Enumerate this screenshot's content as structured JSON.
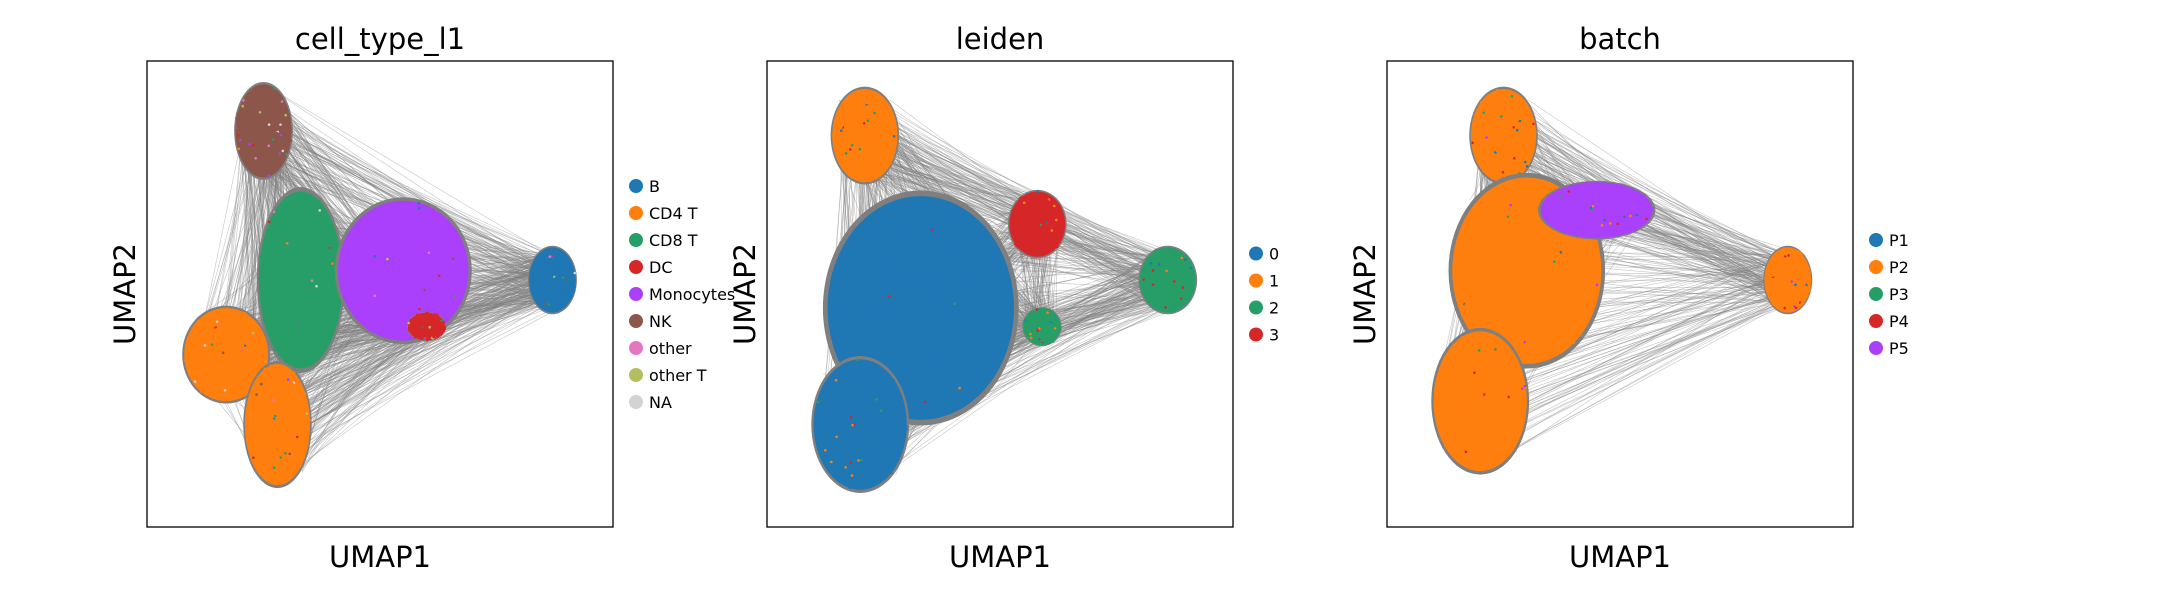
{
  "chart_data": [
    {
      "type": "scatter",
      "title": "cell_type_l1",
      "xlabel": "UMAP1",
      "ylabel": "UMAP2",
      "xticks": "none",
      "yticks": "none",
      "grid": false,
      "edges": "gray PAGA-style connectivity lines between clusters",
      "legend": {
        "placement": "right-outside",
        "entries": [
          {
            "label": "B",
            "color": "#1f77b4"
          },
          {
            "label": "CD4 T",
            "color": "#ff7f0e"
          },
          {
            "label": "CD8 T",
            "color": "#279e68"
          },
          {
            "label": "DC",
            "color": "#d62728"
          },
          {
            "label": "Monocytes",
            "color": "#aa40fc"
          },
          {
            "label": "NK",
            "color": "#8c564b"
          },
          {
            "label": "other",
            "color": "#e377c2"
          },
          {
            "label": "other T",
            "color": "#b5bd61"
          },
          {
            "label": "NA",
            "color": "#d3d3d3"
          }
        ]
      },
      "clusters": [
        {
          "label": "NK",
          "x": 0.25,
          "y": 0.85,
          "rx": 0.06,
          "ry": 0.1
        },
        {
          "label": "CD8 T",
          "x": 0.33,
          "y": 0.53,
          "rx": 0.09,
          "ry": 0.19
        },
        {
          "label": "Monocytes",
          "x": 0.55,
          "y": 0.55,
          "rx": 0.14,
          "ry": 0.15
        },
        {
          "label": "CD4 T",
          "x": 0.17,
          "y": 0.37,
          "rx": 0.09,
          "ry": 0.1
        },
        {
          "label": "CD4 T",
          "x": 0.28,
          "y": 0.22,
          "rx": 0.07,
          "ry": 0.13
        },
        {
          "label": "B",
          "x": 0.87,
          "y": 0.53,
          "rx": 0.05,
          "ry": 0.07
        },
        {
          "label": "DC",
          "x": 0.6,
          "y": 0.43,
          "rx": 0.04,
          "ry": 0.03
        }
      ]
    },
    {
      "type": "scatter",
      "title": "leiden",
      "xlabel": "UMAP1",
      "ylabel": "UMAP2",
      "xticks": "none",
      "yticks": "none",
      "grid": false,
      "edges": "gray PAGA-style connectivity lines between clusters",
      "legend": {
        "placement": "right-outside",
        "entries": [
          {
            "label": "0",
            "color": "#1f77b4"
          },
          {
            "label": "1",
            "color": "#ff7f0e"
          },
          {
            "label": "2",
            "color": "#279e68"
          },
          {
            "label": "3",
            "color": "#d62728"
          }
        ]
      },
      "clusters": [
        {
          "label": "1",
          "x": 0.21,
          "y": 0.84,
          "rx": 0.07,
          "ry": 0.1
        },
        {
          "label": "0",
          "x": 0.33,
          "y": 0.47,
          "rx": 0.2,
          "ry": 0.24
        },
        {
          "label": "0",
          "x": 0.2,
          "y": 0.22,
          "rx": 0.1,
          "ry": 0.14
        },
        {
          "label": "3",
          "x": 0.58,
          "y": 0.65,
          "rx": 0.06,
          "ry": 0.07
        },
        {
          "label": "2",
          "x": 0.86,
          "y": 0.53,
          "rx": 0.06,
          "ry": 0.07
        },
        {
          "label": "2",
          "x": 0.59,
          "y": 0.43,
          "rx": 0.04,
          "ry": 0.04
        }
      ]
    },
    {
      "type": "scatter",
      "title": "batch",
      "xlabel": "UMAP1",
      "ylabel": "UMAP2",
      "xticks": "none",
      "yticks": "none",
      "grid": false,
      "edges": "gray PAGA-style connectivity lines between clusters",
      "legend": {
        "placement": "right-outside",
        "entries": [
          {
            "label": "P1",
            "color": "#1f77b4"
          },
          {
            "label": "P2",
            "color": "#ff7f0e"
          },
          {
            "label": "P3",
            "color": "#279e68"
          },
          {
            "label": "P4",
            "color": "#d62728"
          },
          {
            "label": "P5",
            "color": "#aa40fc"
          }
        ]
      },
      "clusters": [
        {
          "label": "P2",
          "x": 0.25,
          "y": 0.84,
          "rx": 0.07,
          "ry": 0.1
        },
        {
          "label": "P2",
          "x": 0.3,
          "y": 0.55,
          "rx": 0.16,
          "ry": 0.2
        },
        {
          "label": "P5",
          "x": 0.45,
          "y": 0.68,
          "rx": 0.12,
          "ry": 0.06
        },
        {
          "label": "P2",
          "x": 0.2,
          "y": 0.27,
          "rx": 0.1,
          "ry": 0.15
        },
        {
          "label": "P2",
          "x": 0.86,
          "y": 0.53,
          "rx": 0.05,
          "ry": 0.07
        }
      ]
    }
  ]
}
